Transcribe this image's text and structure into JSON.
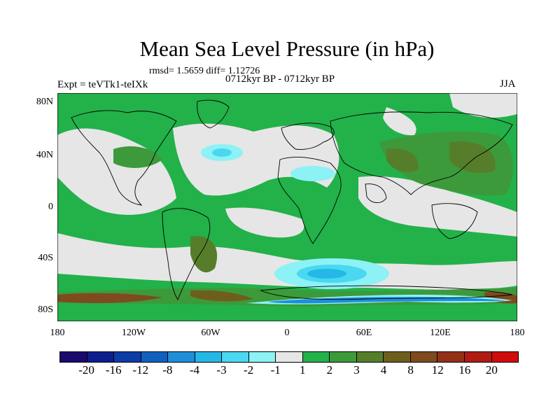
{
  "title": "Mean Sea Level Pressure (in hPa)",
  "stats": "rmsd= 1.5659  diff= 1.12726",
  "period": "0712kyr BP - 0712kyr BP",
  "experiment": "Expt = teVTk1-teIXk",
  "season": "JJA",
  "lat_ticks": [
    "80N",
    "40N",
    "0",
    "40S",
    "80S"
  ],
  "lon_ticks": [
    "180",
    "120W",
    "60W",
    "0",
    "60E",
    "120E",
    "180"
  ],
  "colorbar": {
    "colors": [
      "#1a0a6e",
      "#0a1f8c",
      "#0c3ca6",
      "#1060c0",
      "#1e8ed8",
      "#25b8e6",
      "#4ad8f0",
      "#8cf2f6",
      "#e6e6e6",
      "#23b14a",
      "#3c9a3a",
      "#567e2a",
      "#6e5e1e",
      "#7e4a1e",
      "#933018",
      "#b01c14",
      "#d00c0c"
    ],
    "labels": [
      "-20",
      "-16",
      "-12",
      "-8",
      "-4",
      "-3",
      "-2",
      "-1",
      "1",
      "2",
      "3",
      "4",
      "8",
      "12",
      "16",
      "20"
    ]
  },
  "palette": {
    "land_neutral": "#e6e6e6",
    "pos_1_2": "#23b14a",
    "pos_2_3": "#3c9a3a",
    "pos_3_4": "#567e2a",
    "neg_1_2": "#8cf2f6",
    "neg_2_3": "#4ad8f0",
    "neg_3_4": "#25b8e6"
  }
}
